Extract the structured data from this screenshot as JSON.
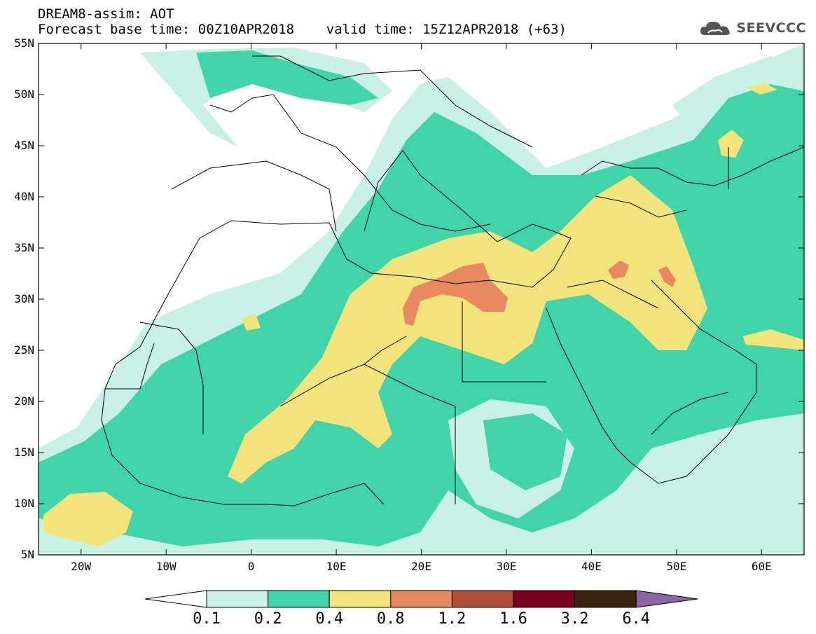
{
  "header": {
    "title": "DREAM8-assim: AOT",
    "subtitle": "Forecast base time: 00Z10APR2018    valid time: 15Z12APR2018 (+63)"
  },
  "logo": {
    "text": "SEEVCCC",
    "icon": "cloud-icon"
  },
  "map": {
    "lon_range": [
      -25,
      65
    ],
    "lat_range": [
      5,
      55
    ],
    "lon_ticks": [
      "20W",
      "10W",
      "0",
      "10E",
      "20E",
      "30E",
      "40E",
      "50E",
      "60E"
    ],
    "lat_ticks": [
      "55N",
      "50N",
      "45N",
      "40N",
      "35N",
      "30N",
      "25N",
      "20N",
      "15N",
      "10N",
      "5N"
    ]
  },
  "legend": {
    "levels": [
      "0.1",
      "0.2",
      "0.4",
      "0.8",
      "1.2",
      "1.6",
      "3.2",
      "6.4"
    ],
    "colors": [
      "#c8f0e4",
      "#40d4a8",
      "#f2e37c",
      "#e8885e",
      "#b04e38",
      "#7a0020",
      "#3c2410",
      "#8c64a8"
    ],
    "below_color": "#ffffff"
  }
}
